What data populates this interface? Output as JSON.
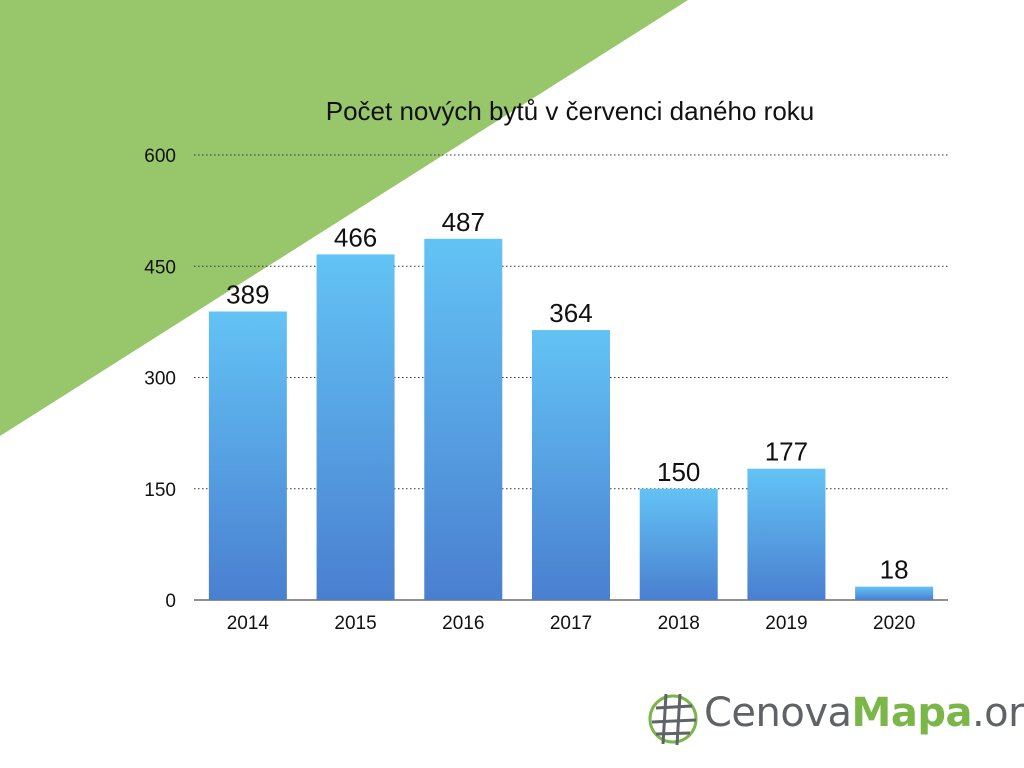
{
  "chart_data": {
    "type": "bar",
    "title": "Počet nových bytů v červenci daného roku",
    "categories": [
      "2014",
      "2015",
      "2016",
      "2017",
      "2018",
      "2019",
      "2020"
    ],
    "values": [
      389,
      466,
      487,
      364,
      150,
      177,
      18
    ],
    "yticks": [
      0,
      150,
      300,
      450,
      600
    ],
    "ylim": [
      0,
      600
    ],
    "xlabel": "",
    "ylabel": "",
    "grid": "horizontal dotted",
    "colors": {
      "bar_top": "#63c3f5",
      "bar_bottom": "#4a7fd0",
      "background_triangle": "#98c66a"
    }
  },
  "logo": {
    "part1": "Cenova",
    "part2": "Mapa",
    "part3": ".org"
  },
  "icons": {
    "logo_icon": "globe-grid-icon"
  }
}
